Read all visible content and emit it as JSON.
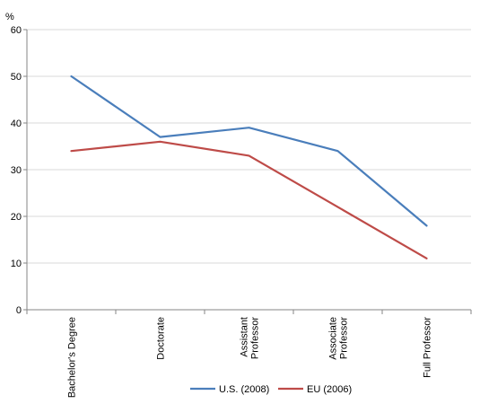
{
  "chart_data": {
    "type": "line",
    "title": "",
    "ylabel": "%",
    "xlabel": "",
    "ylim": [
      0,
      60
    ],
    "yticks": [
      0,
      10,
      20,
      30,
      40,
      50,
      60
    ],
    "grid": true,
    "legend": "bottom-center",
    "categories": [
      [
        "Bachelor's Degree"
      ],
      [
        "Doctorate"
      ],
      [
        "Assistant",
        "Professor"
      ],
      [
        "Associate",
        "Professor"
      ],
      [
        "Full Professor"
      ]
    ],
    "series": [
      {
        "name": "U.S. (2008)",
        "color": "#4a7ebb",
        "values": [
          50,
          37,
          39,
          34,
          18
        ]
      },
      {
        "name": "EU (2006)",
        "color": "#be4b48",
        "values": [
          34,
          36,
          33,
          22,
          11
        ]
      }
    ]
  }
}
